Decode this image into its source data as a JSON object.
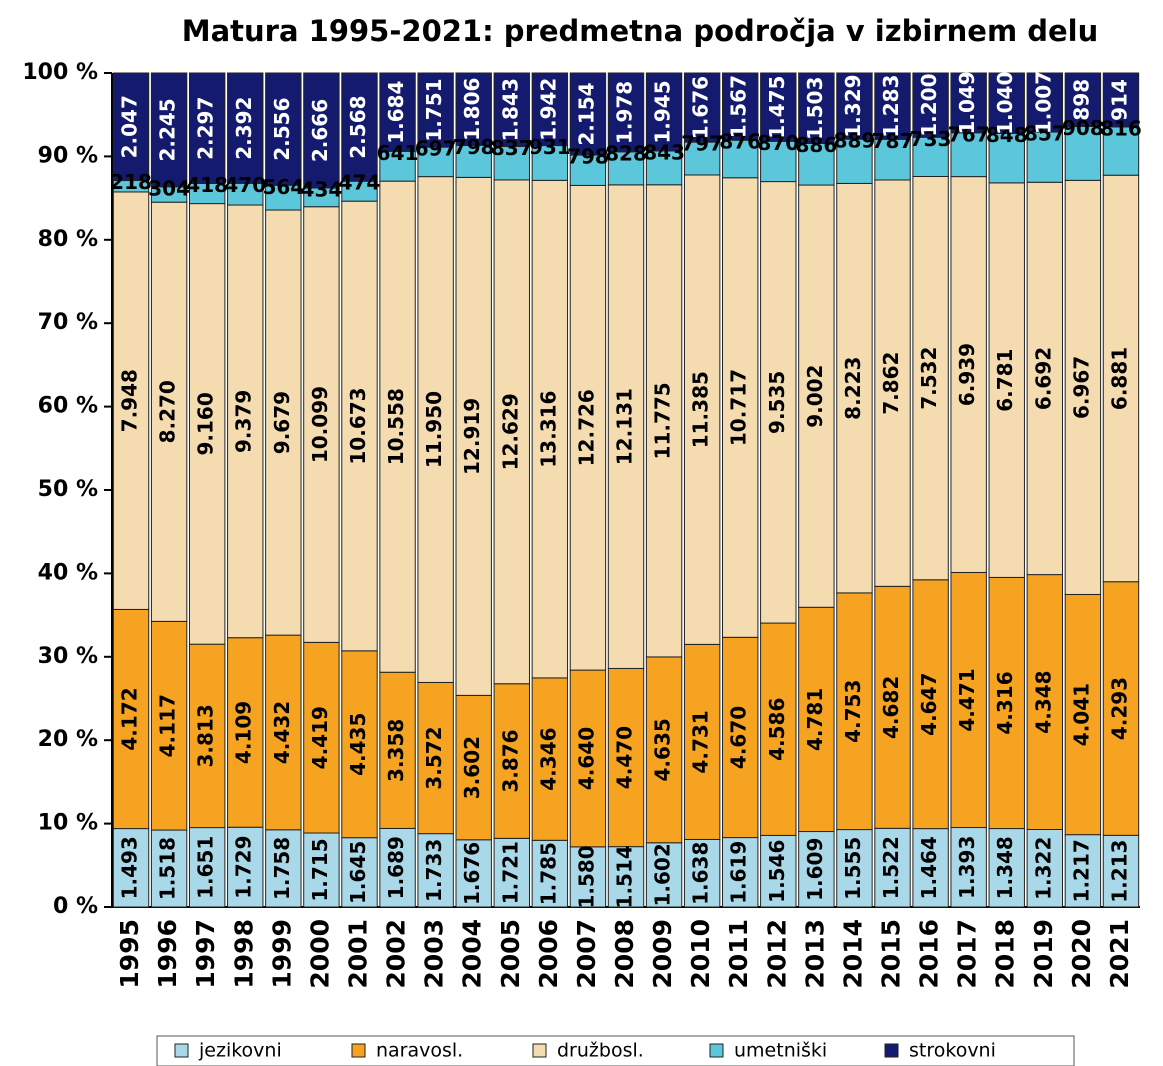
{
  "chart_data": {
    "type": "bar",
    "stack": "percent",
    "title": "Matura 1995-2021: predmetna področja v izbirnem delu",
    "categories": [
      "1995",
      "1996",
      "1997",
      "1998",
      "1999",
      "2000",
      "2001",
      "2002",
      "2003",
      "2004",
      "2005",
      "2006",
      "2007",
      "2008",
      "2009",
      "2010",
      "2011",
      "2012",
      "2013",
      "2014",
      "2015",
      "2016",
      "2017",
      "2018",
      "2019",
      "2020",
      "2021"
    ],
    "series": [
      {
        "name": "jezikovni",
        "color": "#a9d9e9",
        "values": [
          1493,
          1518,
          1651,
          1729,
          1758,
          1715,
          1645,
          1689,
          1733,
          1676,
          1721,
          1785,
          1580,
          1514,
          1602,
          1638,
          1619,
          1546,
          1609,
          1555,
          1522,
          1464,
          1393,
          1348,
          1322,
          1217,
          1213
        ],
        "value_labels": [
          "1.493",
          "1.518",
          "1.651",
          "1.729",
          "1.758",
          "1.715",
          "1.645",
          "1.689",
          "1.733",
          "1.676",
          "1.721",
          "1.785",
          "1.580",
          "1.514",
          "1.602",
          "1.638",
          "1.619",
          "1.546",
          "1.609",
          "1.555",
          "1.522",
          "1.464",
          "1.393",
          "1.348",
          "1.322",
          "1.217",
          "1.213"
        ]
      },
      {
        "name": "naravosl.",
        "color": "#f5a320",
        "values": [
          4172,
          4117,
          3813,
          4109,
          4432,
          4419,
          4435,
          3358,
          3572,
          3602,
          3876,
          4346,
          4640,
          4470,
          4635,
          4731,
          4670,
          4586,
          4781,
          4753,
          4682,
          4647,
          4471,
          4316,
          4348,
          4041,
          4293
        ],
        "value_labels": [
          "4.172",
          "4.117",
          "3.813",
          "4.109",
          "4.432",
          "4.419",
          "4.435",
          "3.358",
          "3.572",
          "3.602",
          "3.876",
          "4.346",
          "4.640",
          "4.470",
          "4.635",
          "4.731",
          "4.670",
          "4.586",
          "4.781",
          "4.753",
          "4.682",
          "4.647",
          "4.471",
          "4.316",
          "4.348",
          "4.041",
          "4.293"
        ]
      },
      {
        "name": "družbosl.",
        "color": "#f5dcb0",
        "values": [
          7948,
          8270,
          9160,
          9379,
          9679,
          10099,
          10673,
          10558,
          11950,
          12919,
          12629,
          13316,
          12726,
          12131,
          11775,
          11385,
          10717,
          9535,
          9002,
          8223,
          7862,
          7532,
          6939,
          6781,
          6692,
          6967,
          6881
        ],
        "value_labels": [
          "7.948",
          "8.270",
          "9.160",
          "9.379",
          "9.679",
          "10.099",
          "10.673",
          "10.558",
          "11.950",
          "12.919",
          "12.629",
          "13.316",
          "12.726",
          "12.131",
          "11.775",
          "11.385",
          "10.717",
          "9.535",
          "9.002",
          "8.223",
          "7.862",
          "7.532",
          "6.939",
          "6.781",
          "6.692",
          "6.967",
          "6.881"
        ]
      },
      {
        "name": "umetniški",
        "color": "#5cc6da",
        "values": [
          218,
          304,
          418,
          470,
          564,
          434,
          474,
          641,
          697,
          798,
          837,
          931,
          798,
          828,
          843,
          797,
          876,
          870,
          886,
          889,
          787,
          733,
          767,
          848,
          857,
          908,
          816
        ],
        "value_labels": [
          "218",
          "304",
          "418",
          "470",
          "564",
          "434",
          "474",
          "641",
          "697",
          "798",
          "837",
          "931",
          "798",
          "828",
          "843",
          "797",
          "876",
          "870",
          "886",
          "889",
          "787",
          "733",
          "767",
          "848",
          "857",
          "908",
          "816"
        ]
      },
      {
        "name": "strokovni",
        "color": "#141b6e",
        "values": [
          2047,
          2245,
          2297,
          2392,
          2556,
          2666,
          2568,
          1684,
          1751,
          1806,
          1843,
          1942,
          2154,
          1978,
          1945,
          1676,
          1567,
          1475,
          1503,
          1329,
          1283,
          1200,
          1049,
          1040,
          1007,
          898,
          914
        ],
        "value_labels": [
          "2.047",
          "2.245",
          "2.297",
          "2.392",
          "2.556",
          "2.666",
          "2.568",
          "1.684",
          "1.751",
          "1.806",
          "1.843",
          "1.942",
          "2.154",
          "1.978",
          "1.945",
          "1.676",
          "1.567",
          "1.475",
          "1.503",
          "1.329",
          "1.283",
          "1.200",
          "1.049",
          "1.040",
          "1.007",
          "898",
          "914"
        ]
      }
    ],
    "ylim": [
      0,
      100
    ],
    "yticks": [
      {
        "value": 0,
        "label": "0 %"
      },
      {
        "value": 10,
        "label": "10 %"
      },
      {
        "value": 20,
        "label": "20 %"
      },
      {
        "value": 30,
        "label": "30 %"
      },
      {
        "value": 40,
        "label": "40 %"
      },
      {
        "value": 50,
        "label": "50 %"
      },
      {
        "value": 60,
        "label": "60 %"
      },
      {
        "value": 70,
        "label": "70 %"
      },
      {
        "value": 80,
        "label": "80 %"
      },
      {
        "value": 90,
        "label": "90 %"
      },
      {
        "value": 100,
        "label": "100 %"
      }
    ],
    "legend": "bottom"
  }
}
